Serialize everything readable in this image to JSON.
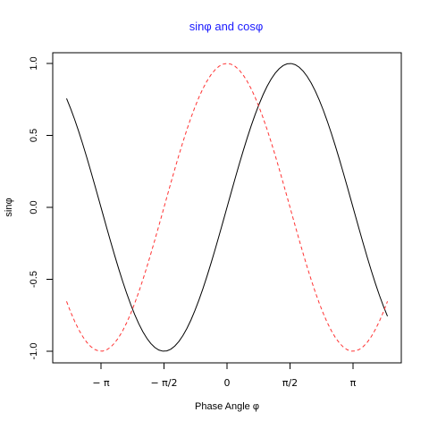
{
  "chart_data": {
    "type": "line",
    "title": "sinφ  and  cosφ",
    "title_color": "#1a1aff",
    "xlabel": "Phase Angle φ",
    "ylabel": "sinφ",
    "xlim": [
      -3.77,
      3.77
    ],
    "ylim": [
      -1.0,
      1.0
    ],
    "xticks": [
      {
        "value": -3.14159,
        "label": "− π"
      },
      {
        "value": -1.5708,
        "label": "− π/2"
      },
      {
        "value": 0,
        "label": "0"
      },
      {
        "value": 1.5708,
        "label": "π/2"
      },
      {
        "value": 3.14159,
        "label": "π"
      }
    ],
    "yticks": [
      {
        "value": -1.0,
        "label": "-1.0"
      },
      {
        "value": -0.5,
        "label": "-0.5"
      },
      {
        "value": 0.0,
        "label": "0.0"
      },
      {
        "value": 0.5,
        "label": "0.5"
      },
      {
        "value": 1.0,
        "label": "1.0"
      }
    ],
    "grid": false,
    "legend": "none",
    "series": [
      {
        "function": "sin",
        "color": "#000000",
        "dash": "solid",
        "x_range": [
          -4.0,
          4.0
        ],
        "samples": 81
      },
      {
        "function": "cos",
        "color": "#ff3333",
        "dash": "dashed",
        "x_range": [
          -4.0,
          4.0
        ],
        "samples": 81
      }
    ]
  }
}
